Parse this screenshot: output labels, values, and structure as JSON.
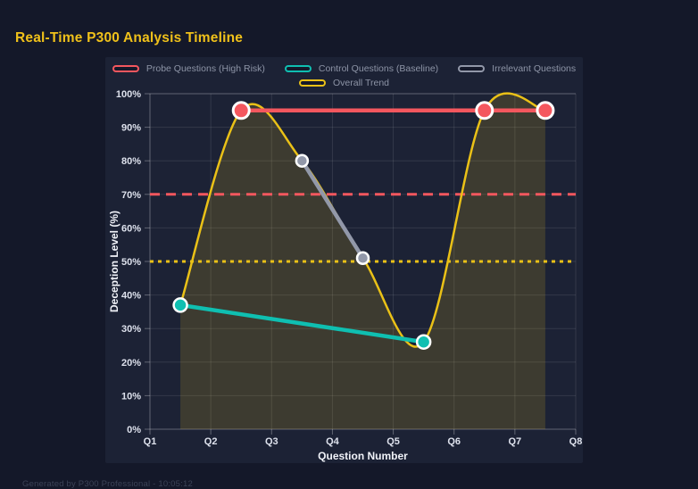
{
  "page": {
    "title": "Real-Time P300 Analysis Timeline",
    "footer": "Generated by P300 Professional - 10:05:12"
  },
  "colors": {
    "page_bg": "#141829",
    "panel_bg": "#1c2235",
    "title": "#f0c11a",
    "grid": "rgba(255,255,255,0.10)",
    "axis_line": "rgba(255,255,255,0.30)",
    "tick_text": "#dde1ec",
    "axis_title_text": "#f0f2f8",
    "legend_text": "#8d94a6",
    "probe": "#f4575e",
    "control": "#0fbfb1",
    "irrelevant": "#9298a9",
    "trend": "#eac117",
    "trend_fill": "rgba(234,193,23,0.16)",
    "point_border": "#ffffff",
    "footer_text": "#3c4357"
  },
  "chart_data": {
    "type": "line",
    "title": "Real-Time P300 Analysis Timeline",
    "xlabel": "Question Number",
    "ylabel": "Deception Level (%)",
    "x_ticks": [
      "Q1",
      "Q2",
      "Q3",
      "Q4",
      "Q5",
      "Q6",
      "Q7",
      "Q8"
    ],
    "y_ticks": [
      "0%",
      "10%",
      "20%",
      "30%",
      "40%",
      "50%",
      "60%",
      "70%",
      "80%",
      "90%",
      "100%"
    ],
    "xlim": [
      1,
      8
    ],
    "ylim": [
      0,
      100
    ],
    "grid": true,
    "legend_position": "top",
    "series": [
      {
        "name": "Probe Questions (High Risk)",
        "color_key": "probe",
        "x": [
          2.5,
          6.5,
          7.5
        ],
        "values": [
          95,
          95,
          95
        ],
        "line_width": 4.5,
        "point_radius": 9,
        "point_border_width": 3
      },
      {
        "name": "Control Questions (Baseline)",
        "color_key": "control",
        "x": [
          1.5,
          5.5
        ],
        "values": [
          37,
          26
        ],
        "line_width": 4.5,
        "point_radius": 7.5,
        "point_border_width": 2.5
      },
      {
        "name": "Irrelevant Questions",
        "color_key": "irrelevant",
        "x": [
          3.5,
          4.5
        ],
        "values": [
          80,
          51
        ],
        "line_width": 4.5,
        "point_radius": 6.5,
        "point_border_width": 2.5
      },
      {
        "name": "Overall Trend",
        "color_key": "trend",
        "x": [
          1.5,
          2.5,
          3.5,
          4.5,
          5.5,
          6.5,
          7.5
        ],
        "values": [
          37,
          95,
          80,
          51,
          26,
          95,
          95
        ],
        "line_width": 2.5,
        "point_radius": 0,
        "smooth": true,
        "fill_to_zero": true
      }
    ],
    "thresholds": [
      {
        "value": 70,
        "color_key": "probe",
        "dash": "11 7",
        "width": 3
      },
      {
        "value": 50,
        "color_key": "trend",
        "dash": "4 5",
        "width": 3
      }
    ],
    "legend_rows": [
      [
        0,
        1,
        2
      ],
      [
        3
      ]
    ]
  }
}
